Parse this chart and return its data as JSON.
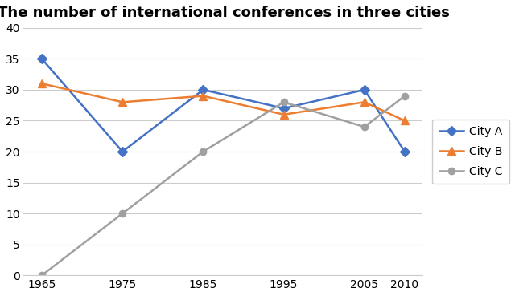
{
  "title": "The number of international conferences in three cities",
  "years": [
    1965,
    1975,
    1985,
    1995,
    2005,
    2010
  ],
  "city_a": [
    35,
    20,
    30,
    27,
    30,
    20
  ],
  "city_b": [
    31,
    28,
    29,
    26,
    28,
    25
  ],
  "city_c": [
    0,
    10,
    20,
    28,
    24,
    29
  ],
  "city_a_color": "#4472C4",
  "city_b_color": "#ED7D31",
  "city_c_color": "#A0A0A0",
  "legend_labels": [
    "City A",
    "City B",
    "City C"
  ],
  "ylim": [
    0,
    40
  ],
  "yticks": [
    0,
    5,
    10,
    15,
    20,
    25,
    30,
    35,
    40
  ],
  "marker_a": "D",
  "marker_b": "^",
  "marker_c": "o",
  "linewidth": 1.8,
  "markersize_a": 6,
  "markersize_b": 7,
  "markersize_c": 6,
  "title_fontsize": 13,
  "tick_fontsize": 10,
  "legend_fontsize": 10,
  "background_color": "#ffffff",
  "grid_color": "#cccccc"
}
